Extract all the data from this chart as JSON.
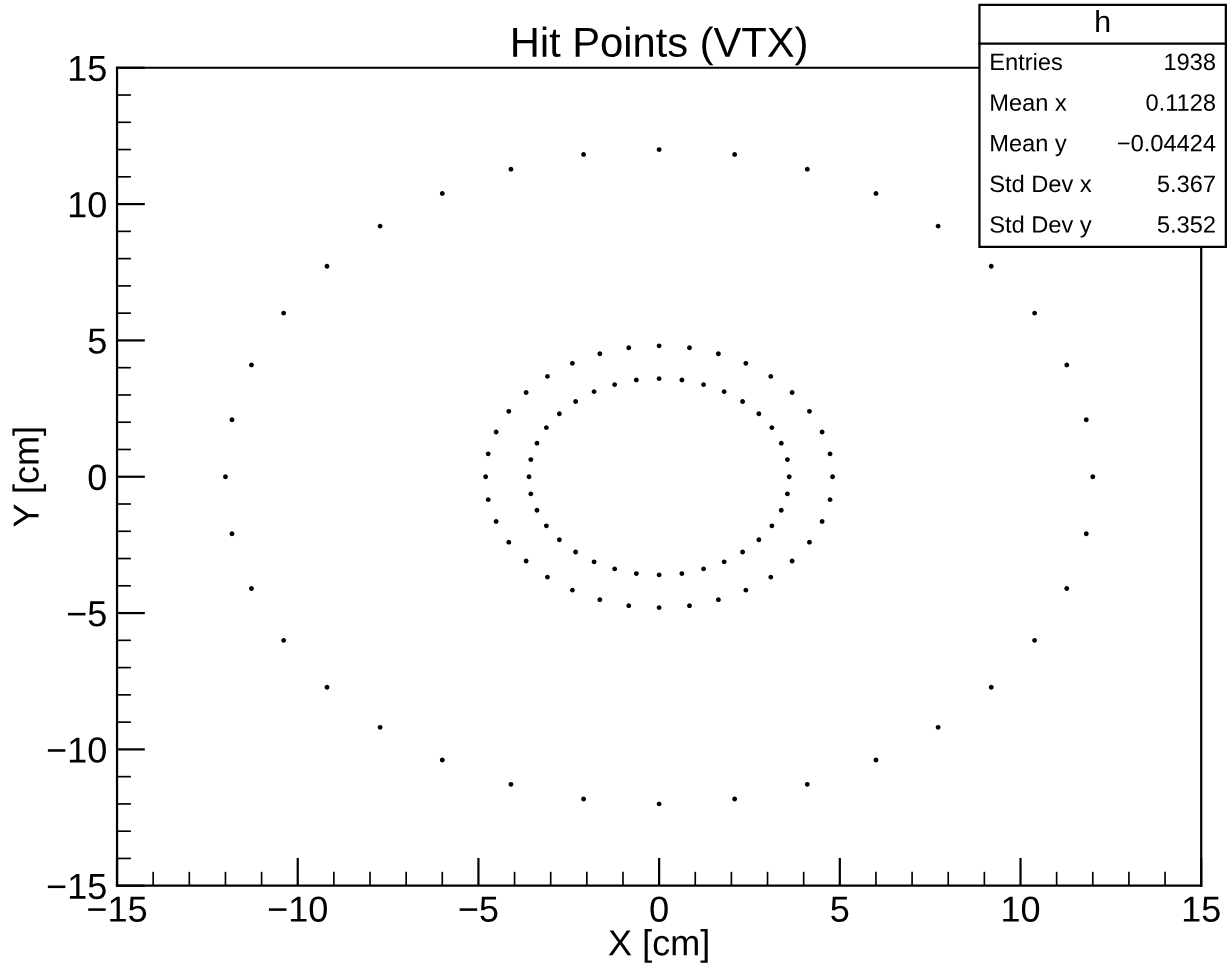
{
  "chart_data": {
    "type": "scatter",
    "title": "Hit Points (VTX)",
    "xlabel": "X [cm]",
    "ylabel": "Y [cm]",
    "xlim": [
      -15,
      15
    ],
    "ylim": [
      -15,
      15
    ],
    "xticks": [
      -15,
      -10,
      -5,
      0,
      5,
      10,
      15
    ],
    "yticks": [
      -15,
      -10,
      -5,
      0,
      5,
      10,
      15
    ],
    "grid": false,
    "legend": false,
    "marker": "circle",
    "annotations": [
      "h",
      "Entries",
      "1938",
      "Mean x",
      "0.1128",
      "Mean y",
      "−0.04424",
      "Std Dev x",
      "5.367",
      "Std Dev y",
      "5.352"
    ],
    "series": [
      {
        "color": "#000000",
        "x": [
          3.6,
          3.55,
          3.38,
          3.12,
          2.76,
          2.31,
          1.8,
          1.23,
          0.63,
          0,
          -0.63,
          -1.23,
          -1.8,
          -2.31,
          -2.76,
          -3.12,
          -3.38,
          -3.55,
          -3.6,
          -3.55,
          -3.38,
          -3.12,
          -2.76,
          -2.31,
          -1.8,
          -1.23,
          -0.63,
          0,
          0.63,
          1.23,
          1.8,
          2.31,
          2.76,
          3.12,
          3.38,
          3.55
        ],
        "values": [
          0,
          0.63,
          1.23,
          1.8,
          2.31,
          2.76,
          3.12,
          3.38,
          3.55,
          3.6,
          3.55,
          3.38,
          3.12,
          2.76,
          2.31,
          1.8,
          1.23,
          0.63,
          0,
          -0.63,
          -1.23,
          -1.8,
          -2.31,
          -2.76,
          -3.12,
          -3.38,
          -3.55,
          -3.6,
          -3.55,
          -3.38,
          -3.12,
          -2.76,
          -2.31,
          -1.8,
          -1.23,
          -0.63
        ]
      },
      {
        "color": "#000000",
        "x": [
          4.8,
          4.73,
          4.51,
          4.16,
          3.68,
          3.09,
          2.4,
          1.64,
          0.84,
          0,
          -0.84,
          -1.64,
          -2.4,
          -3.09,
          -3.68,
          -4.16,
          -4.51,
          -4.73,
          -4.8,
          -4.73,
          -4.51,
          -4.16,
          -3.68,
          -3.09,
          -2.4,
          -1.64,
          -0.84,
          0,
          0.84,
          1.64,
          2.4,
          3.09,
          3.68,
          4.16,
          4.51,
          4.73
        ],
        "values": [
          0,
          0.84,
          1.64,
          2.4,
          3.09,
          3.68,
          4.16,
          4.51,
          4.73,
          4.8,
          4.73,
          4.51,
          4.16,
          3.68,
          3.09,
          2.4,
          1.64,
          0.84,
          0,
          -0.84,
          -1.64,
          -2.4,
          -3.09,
          -3.68,
          -4.16,
          -4.51,
          -4.73,
          -4.8,
          -4.73,
          -4.51,
          -4.16,
          -3.68,
          -3.09,
          -2.4,
          -1.64,
          -0.84
        ]
      },
      {
        "color": "#000000",
        "x": [
          12,
          11.82,
          11.28,
          10.39,
          9.19,
          7.72,
          6,
          4.1,
          2.09,
          0,
          -2.09,
          -4.1,
          -6,
          -7.72,
          -9.19,
          -10.39,
          -11.28,
          -11.82,
          -12,
          -11.82,
          -11.28,
          -10.39,
          -9.19,
          -7.72,
          -6,
          -4.1,
          -2.09,
          0,
          2.09,
          4.1,
          6,
          7.72,
          9.19,
          10.39,
          11.28,
          11.82
        ],
        "values": [
          0,
          2.09,
          4.1,
          6,
          7.72,
          9.19,
          10.39,
          11.28,
          11.82,
          12,
          11.82,
          11.28,
          10.39,
          9.19,
          7.72,
          6,
          4.1,
          2.09,
          0,
          -2.09,
          -4.1,
          -6,
          -7.72,
          -9.19,
          -10.39,
          -11.28,
          -11.82,
          -12,
          -11.82,
          -11.28,
          -10.39,
          -9.19,
          -7.72,
          -6,
          -4.1,
          -2.09
        ]
      }
    ]
  }
}
